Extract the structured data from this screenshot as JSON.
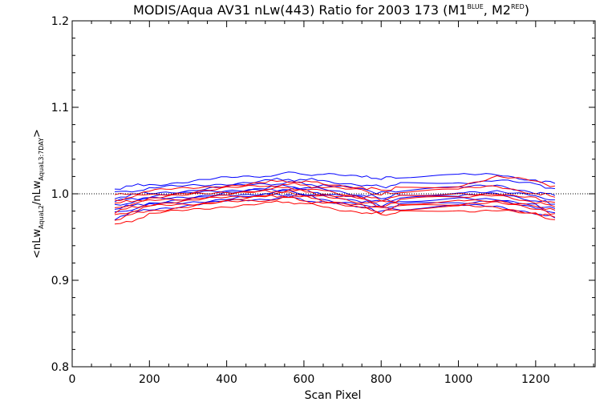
{
  "chart_data": {
    "type": "line",
    "title": {
      "main": "MODIS/Aqua AV31 nLw(443) Ratio for 2003 173 (M1",
      "sup1": "BLUE",
      "mid": ", M2",
      "sup2": "RED",
      "end": ")"
    },
    "xlabel": "Scan Pixel",
    "ylabel": {
      "a": "<nLw",
      "a_sub": "AquaL2",
      "b": "/nLw",
      "b_sub": "AquaL3:7DAY",
      "c": ">"
    },
    "xlim": [
      0,
      1354
    ],
    "ylim": [
      0.8,
      1.2
    ],
    "xticks": [
      {
        "v": 0,
        "label": "0"
      },
      {
        "v": 200,
        "label": "200"
      },
      {
        "v": 400,
        "label": "400"
      },
      {
        "v": 600,
        "label": "600"
      },
      {
        "v": 800,
        "label": "800"
      },
      {
        "v": 1000,
        "label": "1000"
      },
      {
        "v": 1200,
        "label": "1200"
      }
    ],
    "yticks": [
      {
        "v": 0.8,
        "label": "0.8"
      },
      {
        "v": 0.9,
        "label": "0.9"
      },
      {
        "v": 1.0,
        "label": "1.0"
      },
      {
        "v": 1.1,
        "label": "1.1"
      },
      {
        "v": 1.2,
        "label": "1.2"
      }
    ],
    "reference_line": 1.0,
    "colors": {
      "M1": "#0000ff",
      "M2": "#ff0000",
      "axis": "#000000"
    },
    "x": [
      110,
      200,
      300,
      400,
      500,
      560,
      650,
      750,
      800,
      850,
      1000,
      1100,
      1200,
      1250
    ],
    "series": [
      {
        "group": "M1",
        "values": [
          1.006,
          1.011,
          1.014,
          1.018,
          1.021,
          1.024,
          1.022,
          1.019,
          1.018,
          1.019,
          1.021,
          1.023,
          1.016,
          1.012
        ]
      },
      {
        "group": "M1",
        "values": [
          1.001,
          1.006,
          1.009,
          1.012,
          1.015,
          1.017,
          1.015,
          1.011,
          1.008,
          1.011,
          1.013,
          1.016,
          1.01,
          1.006
        ]
      },
      {
        "group": "M1",
        "values": [
          0.996,
          1.001,
          1.004,
          1.008,
          1.011,
          1.013,
          1.01,
          1.005,
          1.001,
          1.004,
          1.007,
          1.009,
          1.002,
          0.998
        ]
      },
      {
        "group": "M1",
        "values": [
          0.991,
          0.997,
          1.0,
          1.004,
          1.007,
          1.009,
          1.005,
          0.999,
          0.995,
          0.999,
          1.002,
          1.004,
          0.997,
          0.993
        ]
      },
      {
        "group": "M1",
        "values": [
          0.987,
          0.994,
          0.997,
          1.001,
          1.004,
          1.006,
          1.001,
          0.995,
          0.991,
          0.995,
          0.998,
          0.999,
          0.992,
          0.988
        ]
      },
      {
        "group": "M1",
        "values": [
          0.982,
          0.99,
          0.993,
          0.998,
          1.001,
          1.003,
          0.997,
          0.991,
          0.987,
          0.991,
          0.994,
          0.995,
          0.987,
          0.983
        ]
      },
      {
        "group": "M1",
        "values": [
          0.978,
          0.987,
          0.99,
          0.995,
          0.998,
          1.0,
          0.994,
          0.988,
          0.984,
          0.987,
          0.99,
          0.991,
          0.983,
          0.978
        ]
      },
      {
        "group": "M1",
        "values": [
          0.972,
          0.983,
          0.986,
          0.991,
          0.994,
          0.996,
          0.99,
          0.984,
          0.98,
          0.983,
          0.986,
          0.986,
          0.978,
          0.972
        ]
      },
      {
        "group": "M2",
        "values": [
          0.998,
          1.003,
          1.006,
          1.01,
          1.013,
          1.015,
          1.012,
          1.008,
          1.004,
          1.007,
          1.01,
          1.02,
          1.014,
          1.009
        ]
      },
      {
        "group": "M2",
        "values": [
          0.993,
          0.999,
          1.002,
          1.006,
          1.009,
          1.011,
          1.008,
          1.003,
          0.999,
          1.002,
          1.005,
          1.008,
          1.001,
          0.996
        ]
      },
      {
        "group": "M2",
        "values": [
          0.988,
          0.995,
          0.998,
          1.002,
          1.005,
          1.007,
          1.003,
          0.997,
          0.993,
          0.997,
          1.0,
          1.001,
          0.994,
          0.99
        ]
      },
      {
        "group": "M2",
        "values": [
          0.984,
          0.992,
          0.995,
          0.999,
          1.002,
          1.004,
          1.0,
          0.994,
          0.99,
          0.993,
          0.996,
          0.997,
          0.99,
          0.985
        ]
      },
      {
        "group": "M2",
        "values": [
          0.979,
          0.988,
          0.991,
          0.996,
          0.999,
          1.001,
          0.996,
          0.99,
          0.986,
          0.989,
          0.992,
          0.993,
          0.986,
          0.981
        ]
      },
      {
        "group": "M2",
        "values": [
          0.975,
          0.985,
          0.988,
          0.993,
          0.996,
          0.998,
          0.993,
          0.987,
          0.983,
          0.986,
          0.989,
          0.989,
          0.982,
          0.977
        ]
      },
      {
        "group": "M2",
        "values": [
          0.97,
          0.981,
          0.985,
          0.99,
          0.993,
          0.995,
          0.989,
          0.983,
          0.979,
          0.982,
          0.985,
          0.985,
          0.978,
          0.973
        ]
      },
      {
        "group": "M2",
        "values": [
          0.963,
          0.976,
          0.981,
          0.986,
          0.989,
          0.991,
          0.985,
          0.979,
          0.976,
          0.978,
          0.981,
          0.981,
          0.975,
          0.97
        ]
      }
    ]
  }
}
